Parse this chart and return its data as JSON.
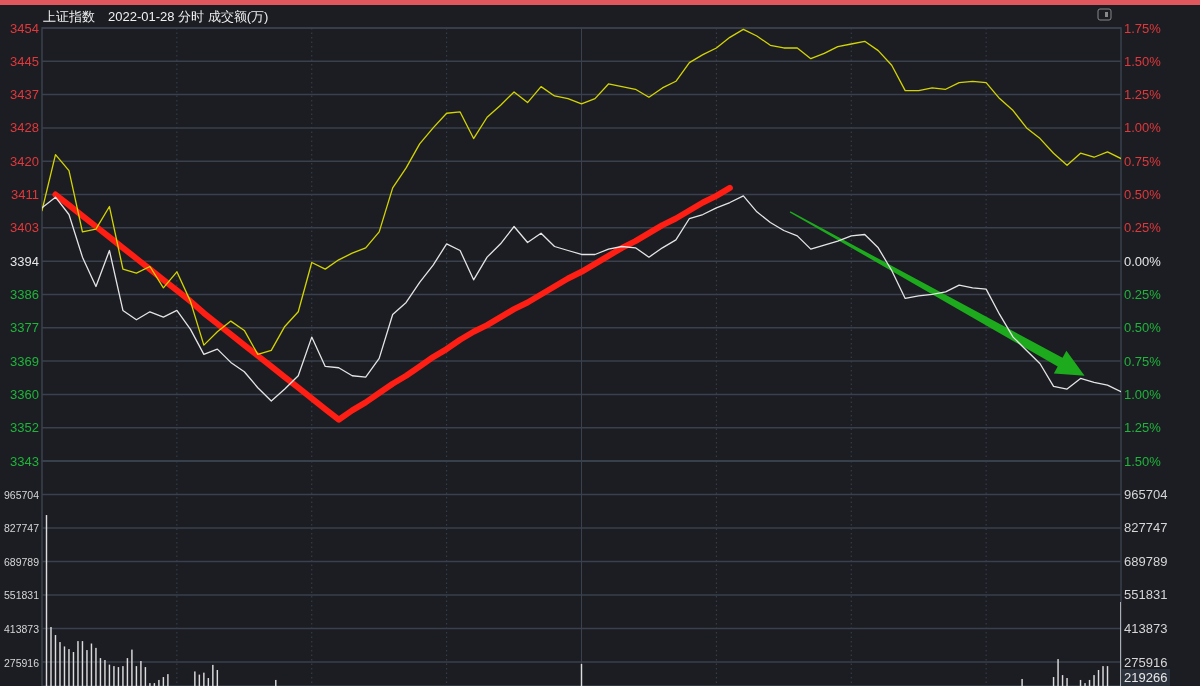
{
  "chart_data": [
    {
      "type": "line",
      "title": "上证指数",
      "subtitle": "2022-01-28 分时 成交额(万)",
      "grid": true,
      "tick_labels": "y",
      "categories": [
        null,
        null,
        null,
        null,
        null,
        null,
        null,
        null,
        null,
        null,
        null,
        null,
        null,
        null,
        null,
        null,
        null,
        null,
        null,
        null,
        null,
        null,
        null,
        null,
        null,
        null,
        null,
        null,
        null,
        null,
        null,
        null,
        null,
        null,
        null,
        null,
        null,
        null,
        null,
        null,
        null,
        null,
        null,
        null,
        null,
        null,
        null,
        null,
        null,
        null,
        null,
        null,
        null,
        null,
        null,
        null,
        null,
        null,
        null,
        null,
        null,
        null,
        null,
        null,
        null,
        null,
        null,
        null,
        null,
        null,
        null,
        null,
        null,
        null,
        null,
        null,
        null,
        null,
        null,
        null,
        null
      ],
      "ylim": [
        3343.39,
        3453.7
      ],
      "yticks": [
        {
          "value": 3343.39,
          "label": "3343"
        },
        {
          "value": 3351.87,
          "label": "3352"
        },
        {
          "value": 3360.36,
          "label": "3360"
        },
        {
          "value": 3368.84,
          "label": "3369"
        },
        {
          "value": 3377.33,
          "label": "3377"
        },
        {
          "value": 3385.81,
          "label": "3386"
        },
        {
          "value": 3394.3,
          "label": "3394"
        },
        {
          "value": 3402.79,
          "label": "3403"
        },
        {
          "value": 3411.27,
          "label": "3411"
        },
        {
          "value": 3419.76,
          "label": "3420"
        },
        {
          "value": 3428.24,
          "label": "3428"
        },
        {
          "value": 3436.73,
          "label": "3437"
        },
        {
          "value": 3445.21,
          "label": "3445"
        },
        {
          "value": 3453.7,
          "label": "3454"
        }
      ],
      "y2lim": [
        -1.5,
        1.75
      ],
      "y2ticks": [
        {
          "value": -1.5,
          "label": "1.50%"
        },
        {
          "value": -1.25,
          "label": "1.25%"
        },
        {
          "value": -1.0,
          "label": "1.00%"
        },
        {
          "value": -0.75,
          "label": "0.75%"
        },
        {
          "value": -0.5,
          "label": "0.50%"
        },
        {
          "value": -0.25,
          "label": "0.25%"
        },
        {
          "value": 0,
          "label": "0.00%"
        },
        {
          "value": 0.25,
          "label": "0.25%"
        },
        {
          "value": 0.5,
          "label": "0.50%"
        },
        {
          "value": 0.75,
          "label": "0.75%"
        },
        {
          "value": 1.0,
          "label": "1.00%"
        },
        {
          "value": 1.25,
          "label": "1.25%"
        },
        {
          "value": 1.5,
          "label": "1.50%"
        },
        {
          "value": 1.75,
          "label": "1.75%"
        }
      ],
      "series": [
        {
          "type": "line",
          "color": "#ff1e14",
          "axis": "y2",
          "values": [
            null,
            0.5,
            0.42,
            0.34,
            0.26,
            0.18,
            0.1,
            0.02,
            -0.06,
            -0.14,
            -0.22,
            -0.3,
            -0.39,
            -0.47,
            -0.55,
            -0.63,
            -0.71,
            -0.79,
            -0.87,
            -0.95,
            -1.03,
            -1.11,
            -1.19,
            -1.12,
            -1.06,
            -0.99,
            -0.92,
            -0.86,
            -0.79,
            -0.72,
            -0.66,
            -0.59,
            -0.53,
            -0.48,
            -0.42,
            -0.36,
            -0.31,
            -0.25,
            -0.19,
            -0.13,
            -0.08,
            -0.02,
            0.04,
            0.1,
            0.15,
            0.21,
            0.27,
            0.32,
            0.38,
            0.44,
            0.49,
            0.55,
            null,
            null,
            null,
            null,
            null,
            null,
            null,
            null,
            null,
            null,
            null,
            null,
            null,
            null,
            null,
            null,
            null,
            null,
            null,
            null,
            null,
            null,
            null,
            null,
            null,
            null,
            null,
            null,
            null
          ]
        },
        {
          "color": "#d4d400",
          "axis": "y2",
          "values": [
            0.38,
            0.8,
            0.68,
            0.22,
            0.24,
            0.41,
            -0.06,
            -0.09,
            -0.04,
            -0.2,
            -0.08,
            -0.3,
            -0.63,
            -0.53,
            -0.45,
            -0.52,
            -0.7,
            -0.67,
            -0.49,
            -0.38,
            -0.01,
            -0.06,
            0.01,
            0.06,
            0.1,
            0.22,
            0.55,
            0.7,
            0.88,
            1.0,
            1.11,
            1.12,
            0.92,
            1.08,
            1.17,
            1.27,
            1.19,
            1.31,
            1.24,
            1.22,
            1.18,
            1.22,
            1.33,
            1.31,
            1.29,
            1.23,
            1.3,
            1.35,
            1.49,
            1.55,
            1.6,
            1.68,
            1.74,
            1.69,
            1.62,
            1.6,
            1.6,
            1.52,
            1.56,
            1.61,
            1.63,
            1.65,
            1.58,
            1.47,
            1.28,
            1.28,
            1.3,
            1.29,
            1.34,
            1.35,
            1.34,
            1.22,
            1.13,
            1.0,
            0.92,
            0.81,
            0.72,
            0.81,
            0.78,
            0.82,
            0.77
          ]
        },
        {
          "color": "#e4e4e4",
          "axis": "y2",
          "values": [
            0.4,
            0.48,
            0.35,
            0.03,
            -0.19,
            0.08,
            -0.37,
            -0.44,
            -0.38,
            -0.42,
            -0.37,
            -0.51,
            -0.7,
            -0.66,
            -0.76,
            -0.83,
            -0.95,
            -1.05,
            -0.96,
            -0.86,
            -0.57,
            -0.79,
            -0.8,
            -0.86,
            -0.87,
            -0.73,
            -0.4,
            -0.31,
            -0.16,
            -0.03,
            0.13,
            0.08,
            -0.14,
            0.03,
            0.13,
            0.26,
            0.14,
            0.21,
            0.11,
            0.08,
            0.05,
            0.05,
            0.09,
            0.11,
            0.1,
            0.03,
            0.1,
            0.16,
            0.32,
            0.35,
            0.4,
            0.44,
            0.49,
            0.37,
            0.29,
            0.23,
            0.19,
            0.09,
            0.12,
            0.15,
            0.19,
            0.2,
            0.1,
            -0.07,
            -0.28,
            -0.26,
            -0.25,
            -0.23,
            -0.18,
            -0.2,
            -0.21,
            -0.4,
            -0.57,
            -0.67,
            -0.77,
            -0.94,
            -0.96,
            -0.88,
            -0.91,
            -0.93,
            -0.98
          ]
        }
      ]
    },
    {
      "type": "bar",
      "grid": true,
      "tick_labels": "y",
      "color": "#dcdcdc",
      "categories": [
        null,
        null,
        null,
        null,
        null,
        null,
        null,
        null,
        null,
        null,
        null,
        null,
        null,
        null,
        null,
        null,
        null,
        null,
        null,
        null,
        null,
        null,
        null,
        null,
        null,
        null,
        null,
        null,
        null,
        null,
        null,
        null,
        null,
        null,
        null,
        null,
        null,
        null,
        null,
        null,
        null,
        null,
        null,
        null,
        null,
        null,
        null,
        null,
        null,
        null,
        null,
        null,
        null,
        null,
        null,
        null,
        null,
        null,
        null,
        null,
        null,
        null,
        null,
        null,
        null,
        null,
        null,
        null,
        null,
        null,
        null,
        null,
        null,
        null,
        null,
        null,
        null,
        null,
        null,
        null,
        null,
        null,
        null,
        null,
        null,
        null,
        null,
        null,
        null,
        null,
        null,
        null,
        null,
        null,
        null,
        null,
        null,
        null,
        null,
        null,
        null,
        null,
        null,
        null,
        null,
        null,
        null,
        null,
        null,
        null,
        null,
        null,
        null,
        null,
        null,
        null,
        null,
        null,
        null,
        null,
        null,
        null,
        null,
        null,
        null,
        null,
        null,
        null,
        null,
        null,
        null,
        null,
        null,
        null,
        null,
        null,
        null,
        null,
        null,
        null,
        null,
        null,
        null,
        null,
        null,
        null,
        null,
        null,
        null,
        null,
        null,
        null,
        null,
        null,
        null,
        null,
        null,
        null,
        null,
        null,
        null,
        null,
        null,
        null,
        null,
        null,
        null,
        null,
        null,
        null,
        null,
        null,
        null,
        null,
        null,
        null,
        null,
        null,
        null,
        null,
        null,
        null,
        null,
        null,
        null,
        null,
        null,
        null,
        null,
        null,
        null,
        null,
        null,
        null,
        null,
        null,
        null,
        null,
        null,
        null,
        null,
        null,
        null,
        null,
        null,
        null,
        null,
        null,
        null,
        null,
        null,
        null,
        null,
        null,
        null,
        null,
        null,
        null,
        null,
        null,
        null,
        null,
        null,
        null,
        null,
        null,
        null,
        null,
        null,
        null,
        null,
        null,
        null,
        null,
        null,
        null,
        null,
        null,
        null,
        null,
        null
      ],
      "ylim": [
        177100,
        1103600
      ],
      "yticks": [
        275916,
        413873,
        551831,
        689789,
        827747,
        965704
      ],
      "y2lim": [
        177100,
        1103600
      ],
      "y2ticks": [
        275916,
        413873,
        551831,
        689789,
        827747,
        965704
      ],
      "values": [
        null,
        881000,
        420000,
        387000,
        358000,
        340000,
        329000,
        317000,
        362000,
        362000,
        325000,
        352000,
        334000,
        292000,
        284000,
        265000,
        259000,
        255000,
        259000,
        292000,
        327000,
        259000,
        280000,
        255000,
        189000,
        189000,
        202000,
        214000,
        226000,
        null,
        null,
        null,
        null,
        null,
        237000,
        224000,
        232000,
        210000,
        264000,
        243000,
        null,
        null,
        null,
        null,
        null,
        null,
        null,
        null,
        null,
        null,
        null,
        null,
        202000,
        null,
        null,
        null,
        null,
        null,
        null,
        null,
        null,
        null,
        null,
        null,
        null,
        null,
        null,
        null,
        null,
        null,
        null,
        null,
        null,
        null,
        null,
        null,
        null,
        null,
        null,
        null,
        null,
        null,
        null,
        null,
        null,
        null,
        null,
        null,
        null,
        null,
        null,
        null,
        null,
        null,
        null,
        null,
        null,
        null,
        null,
        null,
        null,
        null,
        null,
        null,
        null,
        null,
        null,
        null,
        null,
        null,
        null,
        null,
        null,
        null,
        null,
        null,
        null,
        null,
        null,
        null,
        268000,
        null,
        null,
        null,
        null,
        null,
        null,
        null,
        null,
        null,
        null,
        null,
        null,
        null,
        null,
        null,
        null,
        null,
        null,
        null,
        null,
        null,
        null,
        null,
        null,
        null,
        null,
        null,
        null,
        null,
        null,
        null,
        null,
        null,
        null,
        null,
        null,
        null,
        null,
        null,
        null,
        null,
        null,
        null,
        null,
        null,
        null,
        null,
        null,
        null,
        null,
        null,
        null,
        null,
        null,
        null,
        null,
        null,
        null,
        null,
        null,
        null,
        null,
        null,
        null,
        null,
        null,
        null,
        null,
        null,
        null,
        null,
        null,
        null,
        null,
        null,
        null,
        null,
        null,
        null,
        null,
        null,
        null,
        null,
        null,
        null,
        null,
        null,
        null,
        null,
        null,
        null,
        null,
        null,
        null,
        null,
        null,
        null,
        206000,
        null,
        null,
        null,
        null,
        null,
        null,
        214000,
        288000,
        222000,
        210000,
        null,
        null,
        202000,
        189000,
        202000,
        222000,
        243000,
        259000,
        259000,
        null,
        null,
        523000
      ],
      "annotations": [
        "219266"
      ]
    }
  ]
}
